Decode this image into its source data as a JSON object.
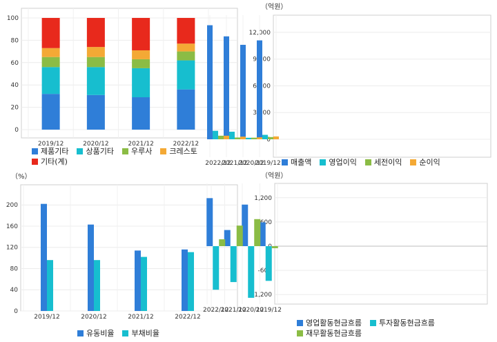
{
  "chart_data": [
    {
      "id": "composition",
      "type": "bar",
      "stacked": true,
      "title": "",
      "unit_label": "",
      "categories": [
        "2019/12",
        "2020/12",
        "2021/12",
        "2022/12"
      ],
      "ylim": [
        0,
        100
      ],
      "yticks": [
        0,
        20,
        40,
        60,
        80,
        100
      ],
      "ytick_labels": [
        "0",
        "20",
        "40",
        "60",
        "80",
        "100"
      ],
      "series": [
        {
          "name": "제품기타",
          "color": "#2f7ed8",
          "values": [
            32,
            31,
            29,
            36
          ]
        },
        {
          "name": "상품기타",
          "color": "#17becf",
          "values": [
            24,
            25,
            26,
            26
          ]
        },
        {
          "name": "우루사",
          "color": "#8bbc45",
          "values": [
            9,
            9,
            8,
            8
          ]
        },
        {
          "name": "크레스토",
          "color": "#f4a935",
          "values": [
            8,
            9,
            8,
            7
          ]
        },
        {
          "name": "기타(계)",
          "color": "#e8291c",
          "values": [
            27,
            26,
            29,
            23
          ]
        }
      ],
      "legend": "bottom-left"
    },
    {
      "id": "income",
      "type": "bar",
      "title": "",
      "unit_label": "（억원）",
      "categories": [
        "2019/12",
        "2020/12",
        "2021/12",
        "2022/12"
      ],
      "ylim": [
        0,
        13000
      ],
      "yticks": [
        0,
        3000,
        6000,
        9000,
        12000
      ],
      "ytick_labels": [
        "0",
        "3,000",
        "6,000",
        "9,000",
        "12,000"
      ],
      "series": [
        {
          "name": "매출액",
          "color": "#2f7ed8",
          "values": [
            11100,
            10600,
            11550,
            12800
          ]
        },
        {
          "name": "영업이익",
          "color": "#17becf",
          "values": [
            500,
            170,
            850,
            950
          ]
        },
        {
          "name": "세전이익",
          "color": "#8bbc45",
          "values": [
            250,
            180,
            200,
            400
          ]
        },
        {
          "name": "순이익",
          "color": "#f4a935",
          "values": [
            320,
            220,
            300,
            400
          ]
        }
      ],
      "legend": "bottom-left"
    },
    {
      "id": "ratios",
      "type": "bar",
      "title": "",
      "unit_label": "（%）",
      "categories": [
        "2019/12",
        "2020/12",
        "2021/12",
        "2022/12"
      ],
      "ylim": [
        0,
        225
      ],
      "yticks": [
        0,
        40,
        80,
        120,
        160,
        200
      ],
      "ytick_labels": [
        "0",
        "40",
        "80",
        "120",
        "160",
        "200"
      ],
      "series": [
        {
          "name": "유동비율",
          "color": "#2f7ed8",
          "values": [
            202,
            163,
            114,
            116
          ]
        },
        {
          "name": "부채비율",
          "color": "#17becf",
          "values": [
            96,
            96,
            102,
            111
          ]
        }
      ],
      "legend": "bottom-center"
    },
    {
      "id": "cashflow",
      "type": "bar",
      "title": "",
      "unit_label": "（억원）",
      "categories": [
        "2019/12",
        "2020/12",
        "2021/12",
        "2022/12"
      ],
      "ylim": [
        -1350,
        1350
      ],
      "yticks": [
        -1200,
        -600,
        0,
        600,
        1200
      ],
      "ytick_labels": [
        "-1,200",
        "-600",
        "0",
        "600",
        "1,200"
      ],
      "series": [
        {
          "name": "영업활동현금흐름",
          "color": "#2f7ed8",
          "values": [
            590,
            1030,
            400,
            1190
          ]
        },
        {
          "name": "투자활동현금흐름",
          "color": "#17becf",
          "values": [
            -860,
            -1280,
            -890,
            -1080
          ]
        },
        {
          "name": "재무활동현금흐름",
          "color": "#8bbc45",
          "values": [
            -50,
            670,
            510,
            170
          ]
        }
      ],
      "legend": "bottom-left"
    }
  ]
}
